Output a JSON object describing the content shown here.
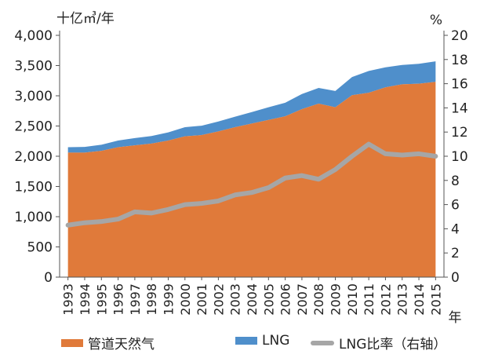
{
  "chart_data": {
    "type": "area",
    "title": "",
    "ylabel_left": "十亿㎥/年",
    "ylabel_right": "%",
    "xlabel": "年",
    "x": [
      "1993",
      "1994",
      "1995",
      "1996",
      "1997",
      "1998",
      "1999",
      "2000",
      "2001",
      "2002",
      "2003",
      "2004",
      "2005",
      "2006",
      "2007",
      "2008",
      "2009",
      "2010",
      "2011",
      "2012",
      "2013",
      "2014",
      "2015"
    ],
    "ylim_left": [
      0,
      4000
    ],
    "yticks_left": [
      "0",
      "500",
      "1,000",
      "1,500",
      "2,000",
      "2,500",
      "3,000",
      "3,500",
      "4,000"
    ],
    "ylim_right": [
      0,
      20
    ],
    "yticks_right": [
      "0",
      "2",
      "4",
      "6",
      "8",
      "10",
      "12",
      "14",
      "16",
      "18",
      "20"
    ],
    "grid": false,
    "series": [
      {
        "name": "管道天然气",
        "kind": "stacked-area",
        "axis": "left",
        "color": "#E07A3A",
        "values": [
          2060,
          2060,
          2090,
          2150,
          2180,
          2210,
          2260,
          2330,
          2350,
          2410,
          2480,
          2540,
          2600,
          2660,
          2780,
          2870,
          2810,
          3010,
          3050,
          3140,
          3190,
          3200,
          3230
        ]
      },
      {
        "name": "LNG",
        "kind": "stacked-area",
        "axis": "left",
        "color": "#4F8FCB",
        "values": [
          90,
          95,
          100,
          110,
          120,
          125,
          135,
          150,
          155,
          165,
          175,
          190,
          210,
          225,
          250,
          260,
          270,
          300,
          360,
          330,
          320,
          330,
          340
        ]
      },
      {
        "name": "LNG比率（右轴）",
        "kind": "line",
        "axis": "right",
        "color": "#A6A6A6",
        "values": [
          4.3,
          4.5,
          4.6,
          4.8,
          5.4,
          5.3,
          5.6,
          6.0,
          6.1,
          6.3,
          6.8,
          7.0,
          7.4,
          8.2,
          8.4,
          8.1,
          8.9,
          10.0,
          11.0,
          10.2,
          10.1,
          10.2,
          10.0
        ]
      }
    ]
  },
  "legend": {
    "pipeline": "管道天然气",
    "lng": "LNG",
    "ratio": "LNG比率（右轴）"
  },
  "colors": {
    "pipeline": "#E07A3A",
    "lng": "#4F8FCB",
    "ratio": "#A6A6A6",
    "axis": "#555555"
  }
}
